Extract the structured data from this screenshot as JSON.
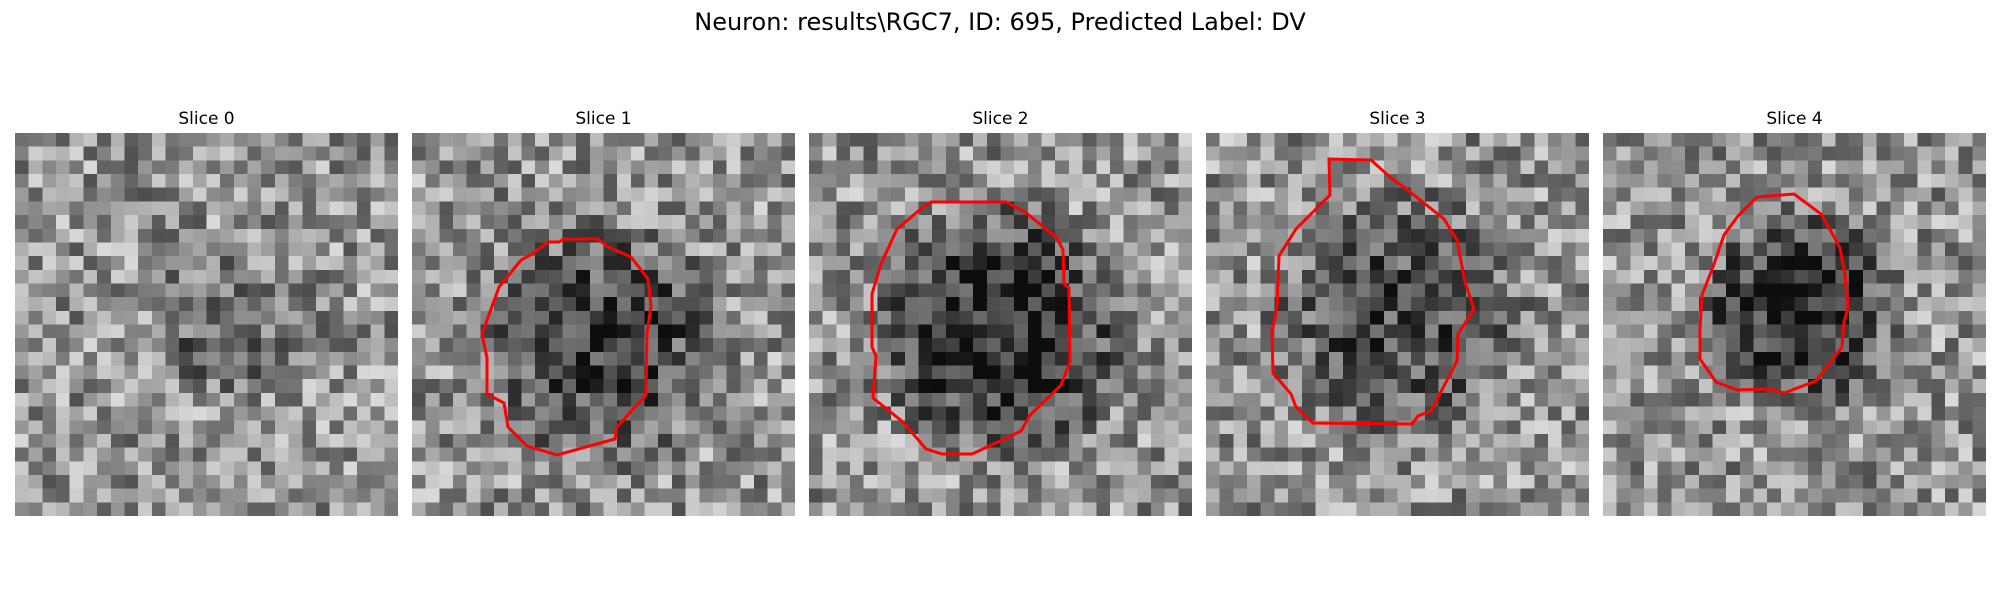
{
  "figure": {
    "title": "Neuron: results\\RGC7, ID: 695, Predicted Label: DV",
    "colormap": "gray",
    "outline_color": "#ff0000"
  },
  "slices": [
    {
      "title": "Slice 0",
      "has_contour": false,
      "darkness": 0.2,
      "blob_center": [
        0.55,
        0.5
      ],
      "blob_radius": 0.22,
      "seed": 11
    },
    {
      "title": "Slice 1",
      "has_contour": true,
      "darkness": 0.35,
      "blob_center": [
        0.5,
        0.55
      ],
      "blob_radius": 0.36,
      "seed": 23
    },
    {
      "title": "Slice 2",
      "has_contour": true,
      "darkness": 0.45,
      "blob_center": [
        0.5,
        0.52
      ],
      "blob_radius": 0.38,
      "seed": 37
    },
    {
      "title": "Slice 3",
      "has_contour": true,
      "darkness": 0.3,
      "blob_center": [
        0.5,
        0.48
      ],
      "blob_radius": 0.38,
      "seed": 41
    },
    {
      "title": "Slice 4",
      "has_contour": true,
      "darkness": 0.45,
      "blob_center": [
        0.51,
        0.46
      ],
      "blob_radius": 0.29,
      "seed": 53
    }
  ]
}
